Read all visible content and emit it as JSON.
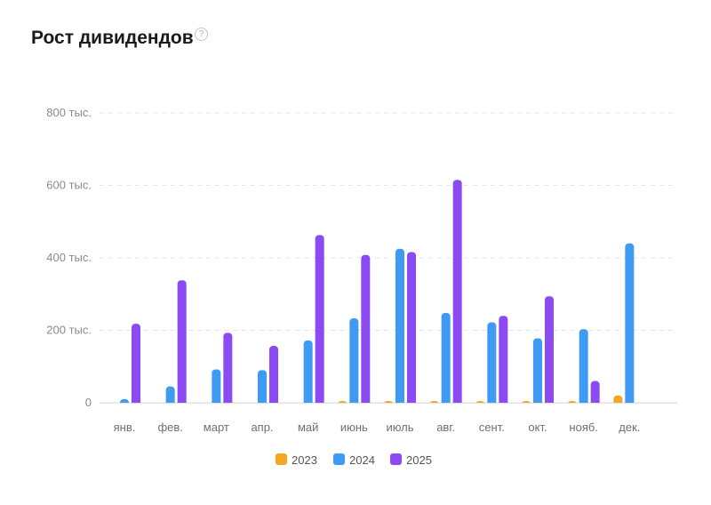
{
  "header": {
    "title": "Рост дивидендов",
    "help_icon": "help-icon"
  },
  "colors": {
    "2023": "#f5a623",
    "2024": "#3d9bf4",
    "2025": "#8c4bf2"
  },
  "chart_data": {
    "type": "bar",
    "title": "Рост дивидендов",
    "xlabel": "",
    "ylabel": "",
    "ylim": [
      0,
      800000
    ],
    "yticks": [
      {
        "value": 0,
        "label": "0"
      },
      {
        "value": 200000,
        "label": "200 тыс."
      },
      {
        "value": 400000,
        "label": "400 тыс."
      },
      {
        "value": 600000,
        "label": "600 тыс."
      },
      {
        "value": 800000,
        "label": "800 тыс."
      }
    ],
    "grid": true,
    "legend": "bottom",
    "categories": [
      "янв.",
      "фев.",
      "март",
      "апр.",
      "май",
      "июнь",
      "июль",
      "авг.",
      "сент.",
      "окт.",
      "нояб.",
      "дек."
    ],
    "series": [
      {
        "name": "2023",
        "color": "#f5a623",
        "values": [
          0,
          0,
          0,
          0,
          0,
          1000,
          2000,
          2000,
          3000,
          3000,
          3000,
          20000
        ]
      },
      {
        "name": "2024",
        "color": "#3d9bf4",
        "values": [
          10000,
          45000,
          92000,
          90000,
          172000,
          233000,
          425000,
          248000,
          222000,
          178000,
          203000,
          440000
        ]
      },
      {
        "name": "2025",
        "color": "#8c4bf2",
        "values": [
          218000,
          338000,
          193000,
          157000,
          463000,
          408000,
          416000,
          615000,
          240000,
          294000,
          60000,
          0
        ]
      }
    ]
  }
}
